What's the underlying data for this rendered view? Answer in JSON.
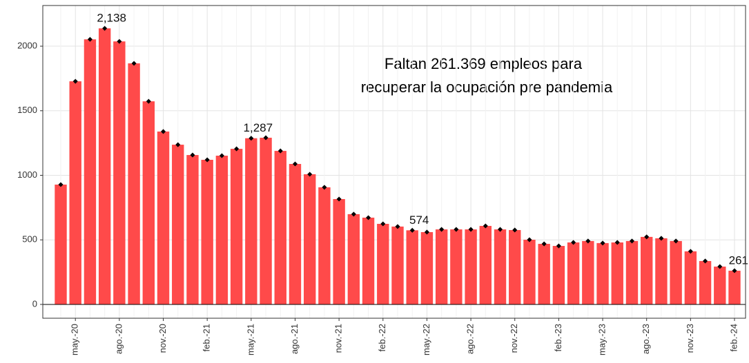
{
  "chart_data": {
    "type": "bar",
    "annotation": [
      "Faltan 261.369 empleos para",
      "recuperar la ocupación pre pandemia"
    ],
    "categories": [
      null,
      "may.-20",
      null,
      null,
      "ago.-20",
      null,
      null,
      "nov.-20",
      null,
      null,
      "feb.-21",
      null,
      null,
      "may.-21",
      null,
      null,
      "ago.-21",
      null,
      null,
      "nov.-21",
      null,
      null,
      "feb.-22",
      null,
      null,
      "may.-22",
      null,
      null,
      "ago.-22",
      null,
      null,
      "nov.-22",
      null,
      null,
      "feb.-23",
      null,
      null,
      "may.-23",
      null,
      null,
      "ago.-23",
      null,
      null,
      "nov.-23",
      null,
      null,
      "feb.-24"
    ],
    "values": [
      928,
      1728,
      2053,
      2138,
      2037,
      1867,
      1573,
      1339,
      1237,
      1157,
      1120,
      1152,
      1205,
      1287,
      1291,
      1189,
      1088,
      1008,
      907,
      816,
      699,
      672,
      624,
      603,
      574,
      560,
      581,
      581,
      581,
      608,
      581,
      576,
      501,
      469,
      453,
      480,
      491,
      475,
      480,
      491,
      523,
      512,
      491,
      411,
      336,
      293,
      261
    ],
    "value_labels": [
      null,
      null,
      null,
      "2,138",
      null,
      null,
      null,
      null,
      null,
      null,
      null,
      null,
      null,
      "1,287",
      null,
      null,
      null,
      null,
      null,
      null,
      null,
      null,
      null,
      null,
      "574",
      null,
      null,
      null,
      null,
      null,
      null,
      null,
      null,
      null,
      null,
      null,
      null,
      null,
      null,
      null,
      null,
      null,
      null,
      null,
      null,
      null,
      "261"
    ],
    "color": "#ff4a4a",
    "ylim": [
      -107,
      2315
    ],
    "yticks": [
      0,
      500,
      1000,
      1500,
      2000
    ],
    "grid": true
  }
}
